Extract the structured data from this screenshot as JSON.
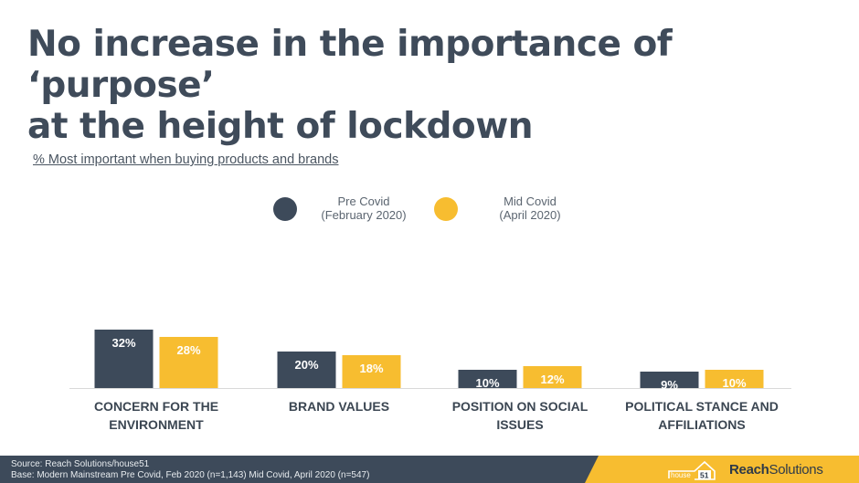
{
  "title_line1": "No increase in the importance of ‘purpose’",
  "title_line2": "at the height of lockdown",
  "subtitle": "% Most important when buying products and brands",
  "colors": {
    "pre": "#3d4a5a",
    "mid": "#f7bd30",
    "footer_dark": "#3d4a5a",
    "footer_accent": "#f7bd30"
  },
  "legend": {
    "pre_line1": "Pre Covid",
    "pre_line2": "(February 2020)",
    "mid_line1": "Mid Covid",
    "mid_line2": "(April 2020)"
  },
  "chart_data": {
    "type": "bar",
    "categories": [
      [
        "CONCERN FOR THE",
        "ENVIRONMENT"
      ],
      [
        "BRAND VALUES"
      ],
      [
        "POSITION ON SOCIAL",
        "ISSUES"
      ],
      [
        "POLITICAL STANCE AND",
        "AFFILIATIONS"
      ]
    ],
    "series": [
      {
        "name": "Pre Covid (February 2020)",
        "values": [
          32,
          20,
          10,
          9
        ],
        "labels": [
          "32%",
          "20%",
          "10%",
          "9%"
        ]
      },
      {
        "name": "Mid Covid (April 2020)",
        "values": [
          28,
          18,
          12,
          10
        ],
        "labels": [
          "28%",
          "18%",
          "12%",
          "10%"
        ]
      }
    ],
    "ylim": [
      0,
      32
    ],
    "grid": false,
    "legend_position": "top"
  },
  "footer": {
    "source": "Source: Reach Solutions/house51",
    "base": "Base: Modern Mainstream  Pre Covid, Feb 2020 (n=1,143) Mid Covid, April 2020 (n=547)",
    "house_label": "house",
    "house_number": "51",
    "brand_bold": "Reach",
    "brand_light": "Solutions"
  }
}
